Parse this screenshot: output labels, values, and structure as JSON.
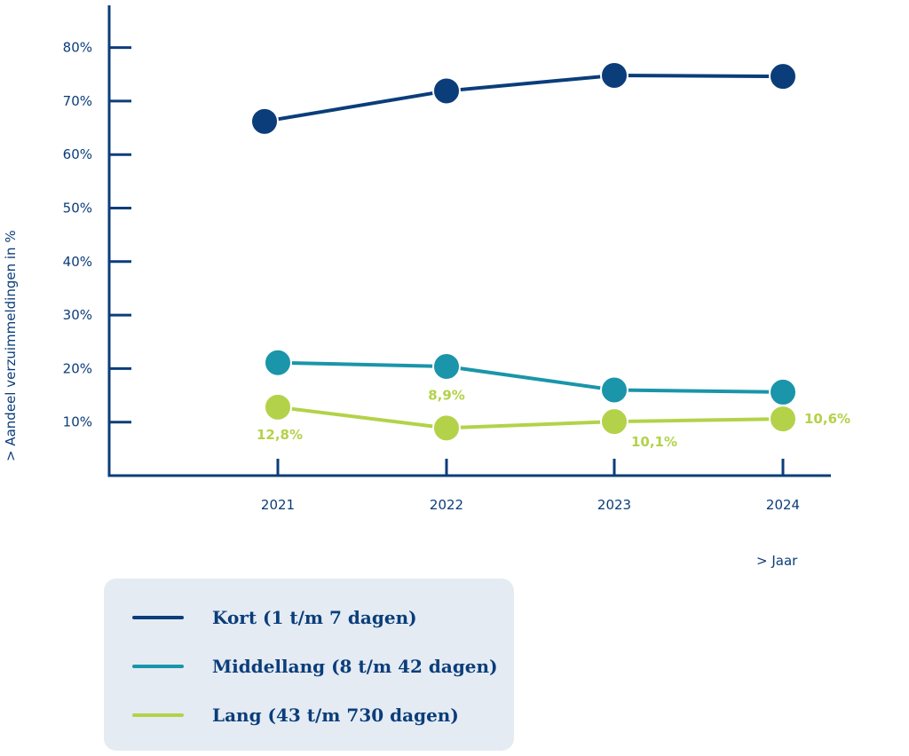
{
  "chart_data": {
    "type": "line",
    "xlabel": "> Jaar",
    "ylabel": "> Aandeel verzuimmeldingen in %",
    "x": [
      "2021",
      "2022",
      "2023",
      "2024"
    ],
    "y_ticks": [
      "10%",
      "20%",
      "30%",
      "40%",
      "50%",
      "60%",
      "70%",
      "80%"
    ],
    "ylim": [
      0,
      85
    ],
    "grid": false,
    "legend_position": "bottom-left",
    "series": [
      {
        "name": "Kort (1 t/m 7 dagen)",
        "color": "#0b3d7a",
        "values": [
          66.2,
          71.9,
          74.8,
          74.6
        ],
        "labels": [
          "",
          "",
          "",
          ""
        ]
      },
      {
        "name": "Middellang (8 t/m 42 dagen)",
        "color": "#1a95aa",
        "values": [
          21.1,
          20.4,
          16.0,
          15.6
        ],
        "labels": [
          "",
          "",
          "",
          ""
        ]
      },
      {
        "name": "Lang (43 t/m 730 dagen)",
        "color": "#b3d249",
        "values": [
          12.8,
          8.9,
          10.1,
          10.6
        ],
        "labels": [
          "12,8%",
          "8,9%",
          "10,1%",
          "10,6%"
        ]
      }
    ]
  }
}
